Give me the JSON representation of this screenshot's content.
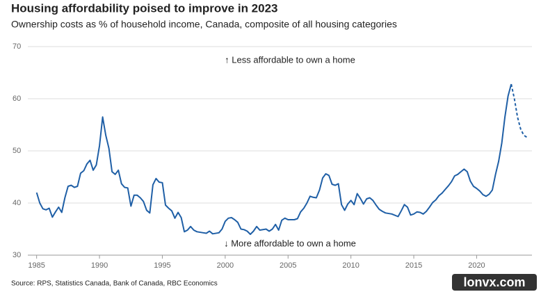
{
  "chart_data": {
    "type": "line",
    "title": "Housing affordability poised to improve in 2023",
    "subtitle": "Ownership costs as % of household income, Canada, composite of all housing categories",
    "annotations": [
      "↑ Less affordable to own a home",
      "↓ More affordable to own a home"
    ],
    "source": "Source: RPS, Statistics Canada, Bank of Canada, RBC Economics",
    "watermark": "lonvx.com",
    "xlim": [
      1984.3,
      2024.4
    ],
    "xticks": [
      1985,
      1990,
      1995,
      2000,
      2005,
      2010,
      2015,
      2020
    ],
    "ylim": [
      30,
      70
    ],
    "yticks": [
      30,
      40,
      50,
      60,
      70
    ],
    "grid": true,
    "series": [
      {
        "color": "#1f5fa6",
        "dashed": false,
        "x": [
          1985,
          1985.25,
          1985.5,
          1985.75,
          1986,
          1986.25,
          1986.5,
          1986.75,
          1987,
          1987.25,
          1987.5,
          1987.75,
          1988,
          1988.25,
          1988.5,
          1988.75,
          1989,
          1989.25,
          1989.5,
          1989.75,
          1990,
          1990.25,
          1990.5,
          1990.75,
          1991,
          1991.25,
          1991.5,
          1991.75,
          1992,
          1992.25,
          1992.5,
          1992.75,
          1993,
          1993.25,
          1993.5,
          1993.75,
          1994,
          1994.25,
          1994.5,
          1994.75,
          1995,
          1995.25,
          1995.5,
          1995.75,
          1996,
          1996.25,
          1996.5,
          1996.75,
          1997,
          1997.25,
          1997.5,
          1997.75,
          1998.25,
          1998.5,
          1998.75,
          1999,
          1999.5,
          1999.75,
          2000,
          2000.25,
          2000.5,
          2000.75,
          2001,
          2001.25,
          2001.5,
          2001.75,
          2002,
          2002.25,
          2002.5,
          2002.75,
          2003.25,
          2003.5,
          2003.75,
          2004,
          2004.25,
          2004.5,
          2004.75,
          2005,
          2005.5,
          2005.75,
          2006,
          2006.25,
          2006.5,
          2006.75,
          2007,
          2007.25,
          2007.5,
          2007.75,
          2008,
          2008.25,
          2008.5,
          2008.75,
          2009,
          2009.25,
          2009.5,
          2009.75,
          2010,
          2010.25,
          2010.5,
          2010.75,
          2011,
          2011.25,
          2011.5,
          2011.75,
          2012,
          2012.25,
          2012.5,
          2012.75,
          2013.25,
          2013.75,
          2014,
          2014.25,
          2014.5,
          2014.75,
          2015,
          2015.25,
          2015.5,
          2015.75,
          2016,
          2016.25,
          2016.5,
          2016.75,
          2017,
          2017.25,
          2017.5,
          2017.75,
          2018,
          2018.25,
          2018.5,
          2018.75,
          2019,
          2019.25,
          2019.5,
          2019.75,
          2020,
          2020.25,
          2020.5,
          2020.75,
          2021,
          2021.25,
          2021.5,
          2021.75,
          2022,
          2022.25,
          2022.5,
          2022.75
        ],
        "values": [
          42,
          40,
          38.9,
          38.7,
          39,
          37.3,
          38.3,
          39.2,
          38.2,
          41,
          43.2,
          43.4,
          43,
          43.2,
          45.7,
          46.2,
          47.5,
          48.2,
          46.3,
          47.3,
          51,
          56.5,
          53,
          50.5,
          46,
          45.5,
          46.3,
          43.7,
          43,
          42.9,
          39.4,
          41.5,
          41.5,
          41,
          40.3,
          38.6,
          38.1,
          43.5,
          44.7,
          44,
          43.9,
          39.6,
          39,
          38.5,
          37.1,
          38.2,
          37.2,
          34.5,
          34.8,
          35.5,
          34.8,
          34.5,
          34.3,
          34.2,
          34.6,
          34.1,
          34.3,
          35,
          36.5,
          37.1,
          37.2,
          36.8,
          36.3,
          35,
          34.9,
          34.6,
          34,
          34.6,
          35.5,
          34.8,
          35,
          34.6,
          35,
          35.9,
          34.8,
          36.7,
          37.1,
          36.8,
          36.8,
          37,
          38.3,
          39,
          40,
          41.3,
          41.1,
          41,
          42.5,
          44.8,
          45.6,
          45.3,
          43.6,
          43.4,
          43.7,
          39.7,
          38.6,
          39.8,
          40.5,
          39.7,
          41.8,
          40.9,
          39.8,
          40.8,
          41,
          40.5,
          39.6,
          38.8,
          38.4,
          38.1,
          37.9,
          37.4,
          38.5,
          39.7,
          39.2,
          37.7,
          37.9,
          38.3,
          38.2,
          37.9,
          38.4,
          39.2,
          40.1,
          40.6,
          41.4,
          41.9,
          42.6,
          43.3,
          44.1,
          45.2,
          45.5,
          46,
          46.5,
          46,
          44.2,
          43.2,
          42.8,
          42.3,
          41.6,
          41.3,
          41.7,
          42.5,
          45.5,
          48,
          51.5,
          56.5,
          60.5,
          62.8
        ]
      },
      {
        "color": "#1f5fa6",
        "dashed": true,
        "x": [
          2022.75,
          2023,
          2023.25,
          2023.5,
          2023.75,
          2024
        ],
        "values": [
          62.8,
          60,
          56.5,
          54.2,
          53,
          52.6
        ]
      }
    ]
  }
}
